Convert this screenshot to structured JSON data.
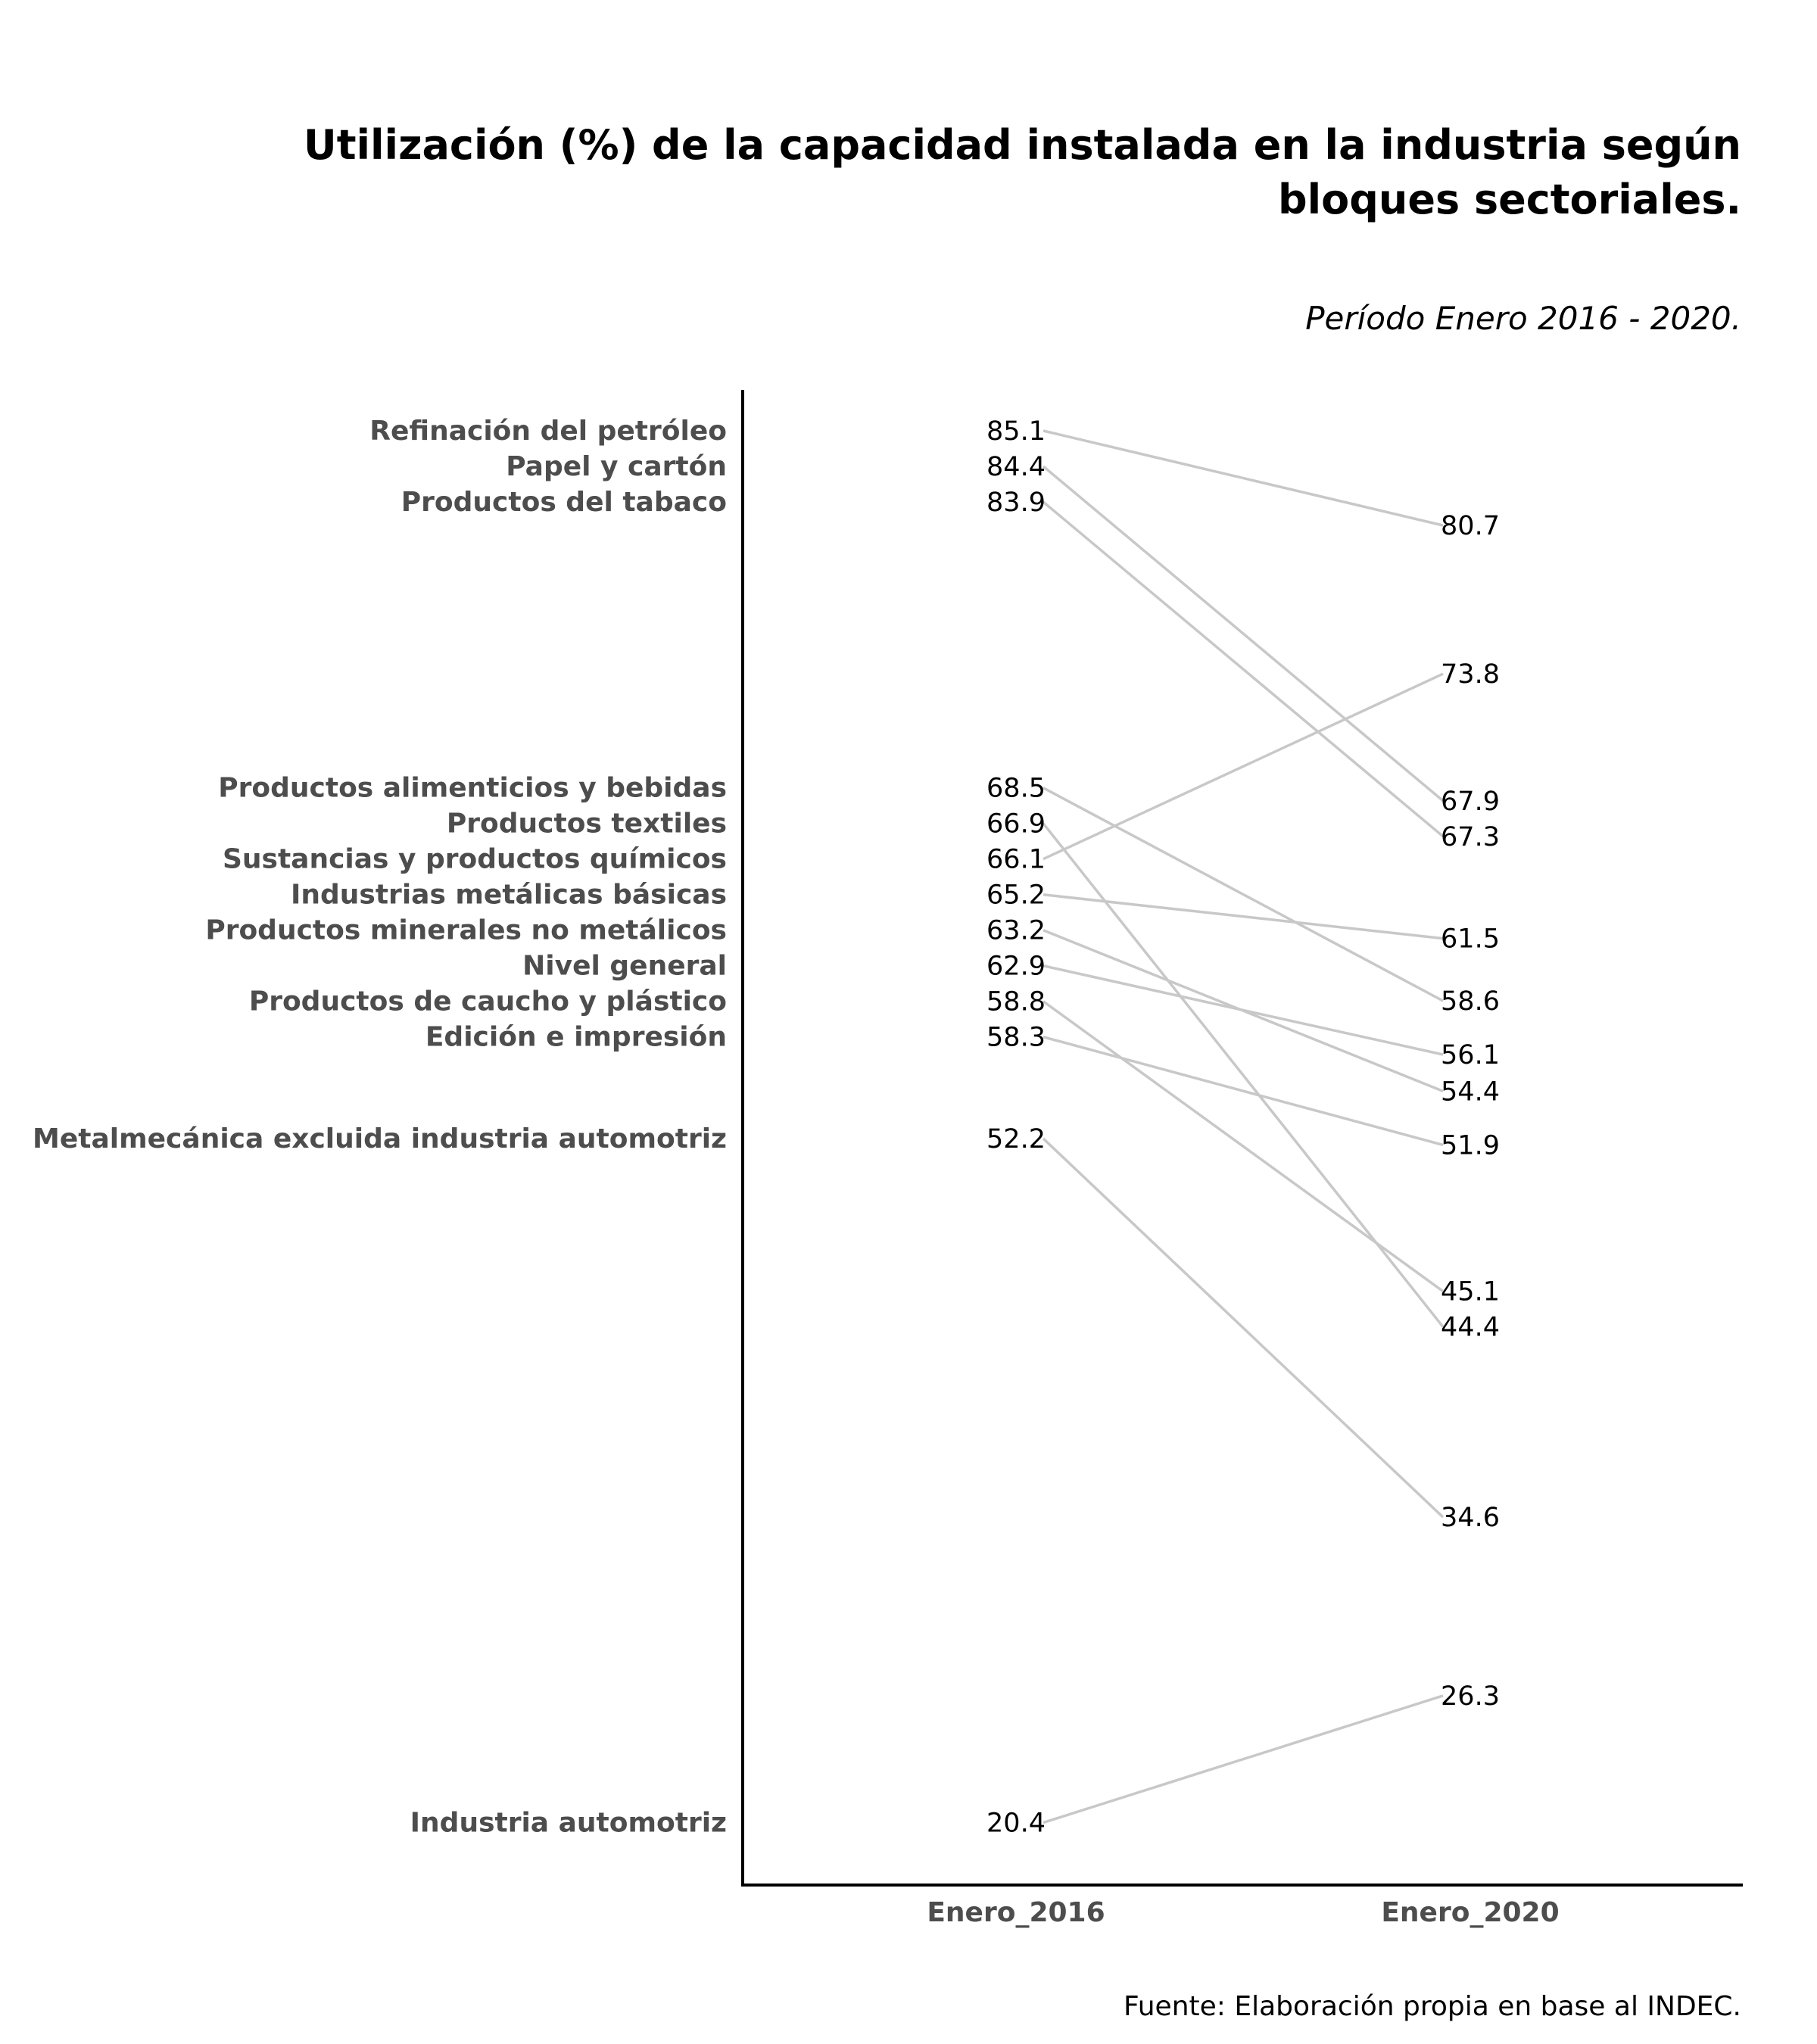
{
  "chart_data": {
    "type": "line",
    "title_line1": "Utilización (%) de la capacidad instalada en la industria según",
    "title_line2": "bloques sectoriales.",
    "subtitle": "Período Enero 2016 - 2020.",
    "caption": "Fuente: Elaboración propia en base al INDEC.",
    "x_categories": [
      "Enero_2016",
      "Enero_2020"
    ],
    "ylim": [
      17.5,
      87
    ],
    "grid": false,
    "legend": "none",
    "line_color": "#c8c8c8",
    "label_color": "#4d4d4d",
    "series": [
      {
        "name": "Refinación del petróleo",
        "values": [
          85.1,
          80.7
        ]
      },
      {
        "name": "Papel y cartón",
        "values": [
          84.4,
          67.9
        ]
      },
      {
        "name": "Productos del tabaco",
        "values": [
          83.9,
          67.3
        ]
      },
      {
        "name": "Productos alimenticios y bebidas",
        "values": [
          68.5,
          58.6
        ]
      },
      {
        "name": "Productos textiles",
        "values": [
          66.9,
          44.4
        ]
      },
      {
        "name": "Sustancias y productos químicos",
        "values": [
          66.1,
          73.8
        ]
      },
      {
        "name": "Industrias metálicas básicas",
        "values": [
          65.2,
          61.5
        ]
      },
      {
        "name": "Productos minerales no metálicos",
        "values": [
          63.2,
          54.4
        ]
      },
      {
        "name": "Nivel general",
        "values": [
          62.9,
          56.1
        ]
      },
      {
        "name": "Productos de caucho y plástico",
        "values": [
          58.8,
          45.1
        ]
      },
      {
        "name": "Edición e impresión",
        "values": [
          58.3,
          51.9
        ]
      },
      {
        "name": "Metalmecánica excluida industria automotriz",
        "values": [
          52.2,
          34.6
        ]
      },
      {
        "name": "Industria automotriz",
        "values": [
          20.4,
          26.3
        ]
      }
    ]
  }
}
